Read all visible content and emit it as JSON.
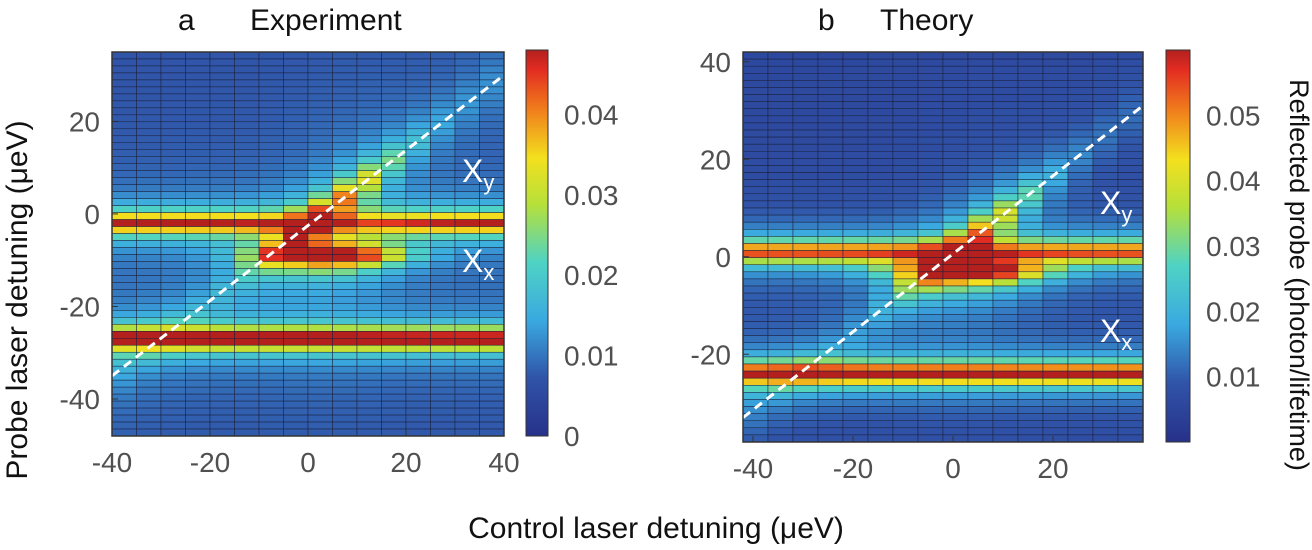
{
  "figure": {
    "shared_xlabel": "Control laser detuning (μeV)",
    "shared_ylabel": "Probe laser detuning (μeV)",
    "colorbar_label": "Reflected probe (photon/lifetime)"
  },
  "chart_data": [
    {
      "type": "heatmap",
      "panel_letter": "a",
      "title": "Experiment",
      "xlabel": "Control laser detuning (μeV)",
      "ylabel": "Probe laser detuning (μeV)",
      "xlim": [
        -40,
        40
      ],
      "ylim": [
        -48,
        35
      ],
      "xticks": [
        -40,
        -20,
        0,
        20,
        40
      ],
      "yticks": [
        20,
        0,
        -20,
        -40
      ],
      "colorbar": {
        "min": 0,
        "max": 0.048,
        "ticks": [
          0,
          0.01,
          0.02,
          0.03,
          0.04
        ],
        "tick_labels": [
          "0",
          "0.01",
          "0.02",
          "0.03",
          "0.04"
        ]
      },
      "grid_cols": 16,
      "grid_rows": 55,
      "dressed_line": {
        "x_start": -40,
        "y_start": -35,
        "x_end": 40,
        "y_end": 30,
        "style": "white dashed"
      },
      "resonances": [
        {
          "label": "X",
          "subscript": "y",
          "center_detuning": -2,
          "peak_value": 0.045
        },
        {
          "label": "X",
          "subscript": "x",
          "center_detuning": -27,
          "peak_value": 0.047
        }
      ],
      "model": {
        "lower_branch_shift": -7,
        "anticrossing_center_x": 5,
        "background": 0.007
      }
    },
    {
      "type": "heatmap",
      "panel_letter": "b",
      "title": "Theory",
      "xlabel": "Control laser detuning (μeV)",
      "ylabel": "Probe laser detuning (μeV)",
      "xlim": [
        -42,
        38
      ],
      "ylim": [
        -38,
        42
      ],
      "xticks": [
        -40,
        -20,
        0,
        20
      ],
      "yticks": [
        40,
        20,
        0,
        -20
      ],
      "colorbar": {
        "min": 0,
        "max": 0.06,
        "ticks": [
          0.01,
          0.02,
          0.03,
          0.04,
          0.05
        ],
        "tick_labels": [
          "0.01",
          "0.02",
          "0.03",
          "0.04",
          "0.05"
        ]
      },
      "grid_cols": 16,
      "grid_rows": 55,
      "dressed_line": {
        "x_start": -42,
        "y_start": -33,
        "x_end": 38,
        "y_end": 31,
        "style": "white dashed"
      },
      "resonances": [
        {
          "label": "X",
          "subscript": "y",
          "center_detuning": 1,
          "peak_value": 0.055
        },
        {
          "label": "X",
          "subscript": "x",
          "center_detuning": -24,
          "peak_value": 0.06
        }
      ],
      "model": {
        "lower_branch_shift": -4,
        "anticrossing_center_x": 4,
        "background": 0.006
      }
    }
  ]
}
